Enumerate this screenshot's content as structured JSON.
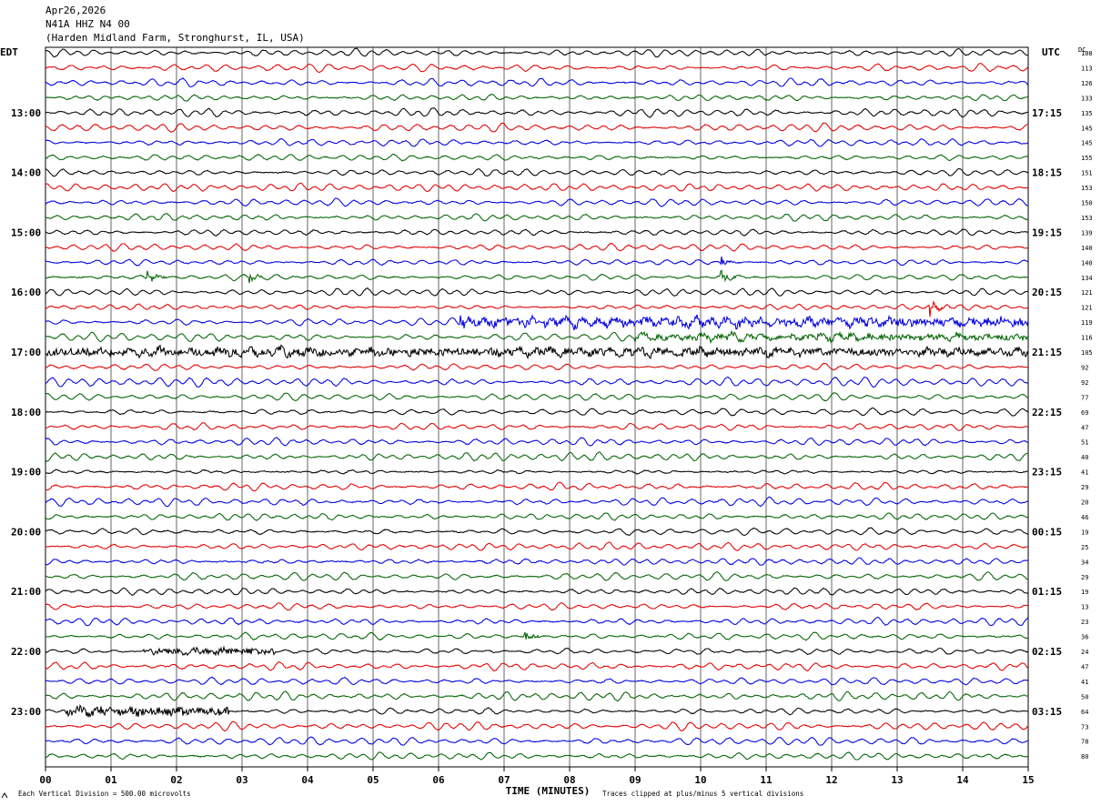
{
  "header": {
    "date": "Apr26,2026",
    "station": "N41A HHZ N4 00",
    "location": "(Harden Midland Farm, Stronghurst, IL, USA)"
  },
  "chart_data": {
    "type": "line",
    "title": "",
    "left_axis_label": "EDT",
    "right_axis_label": "UTC",
    "dc_label": "DC",
    "xlabel": "TIME (MINUTES)",
    "x_ticks": [
      "00",
      "01",
      "02",
      "03",
      "04",
      "05",
      "06",
      "07",
      "08",
      "09",
      "10",
      "11",
      "12",
      "13",
      "14",
      "15"
    ],
    "xlim": [
      0,
      15
    ],
    "trace_colors": [
      "#000000",
      "#e00000",
      "#0000e0",
      "#006400"
    ],
    "left_hour_labels": [
      "13:00",
      "14:00",
      "15:00",
      "16:00",
      "17:00",
      "18:00",
      "19:00",
      "20:00",
      "21:00",
      "22:00",
      "23:00"
    ],
    "right_hour_labels": [
      "17:15",
      "18:15",
      "19:15",
      "20:15",
      "21:15",
      "22:15",
      "23:15",
      "00:15",
      "01:15",
      "02:15",
      "03:15"
    ],
    "first_labeled_row": 4,
    "rows_per_hour": 4,
    "dc_offsets": [
      108,
      113,
      126,
      133,
      135,
      145,
      145,
      155,
      151,
      153,
      150,
      153,
      139,
      140,
      140,
      134,
      121,
      121,
      119,
      116,
      105,
      92,
      92,
      77,
      69,
      47,
      51,
      40,
      41,
      29,
      20,
      46,
      19,
      25,
      34,
      29,
      19,
      13,
      23,
      36,
      24,
      47,
      41,
      50,
      64,
      73,
      78,
      80
    ],
    "events": [
      {
        "row": 15,
        "minute": 1.55,
        "amp": 0.5
      },
      {
        "row": 15,
        "minute": 3.1,
        "amp": 0.4
      },
      {
        "row": 15,
        "minute": 10.3,
        "amp": 0.55
      },
      {
        "row": 14,
        "minute": 10.3,
        "amp": 0.35
      },
      {
        "row": 17,
        "minute": 13.5,
        "amp": 0.6
      },
      {
        "row": 18,
        "minute": 6.3,
        "amp": 0.9
      },
      {
        "row": 39,
        "minute": 7.3,
        "amp": 0.4
      }
    ],
    "noisy_segments": [
      {
        "row": 18,
        "from": 6.3,
        "to": 15,
        "amp": 0.45
      },
      {
        "row": 19,
        "from": 9.0,
        "to": 15,
        "amp": 0.3
      },
      {
        "row": 20,
        "from": 0,
        "to": 15,
        "amp": 0.4
      },
      {
        "row": 40,
        "from": 1.5,
        "to": 3.5,
        "amp": 0.35
      },
      {
        "row": 44,
        "from": 0.3,
        "to": 2.8,
        "amp": 0.45
      }
    ]
  },
  "footer": {
    "scale_text": "Each Vertical Division =  500.00 microvolts",
    "clip_text": "Traces clipped at plus/minus 5 vertical divisions"
  }
}
